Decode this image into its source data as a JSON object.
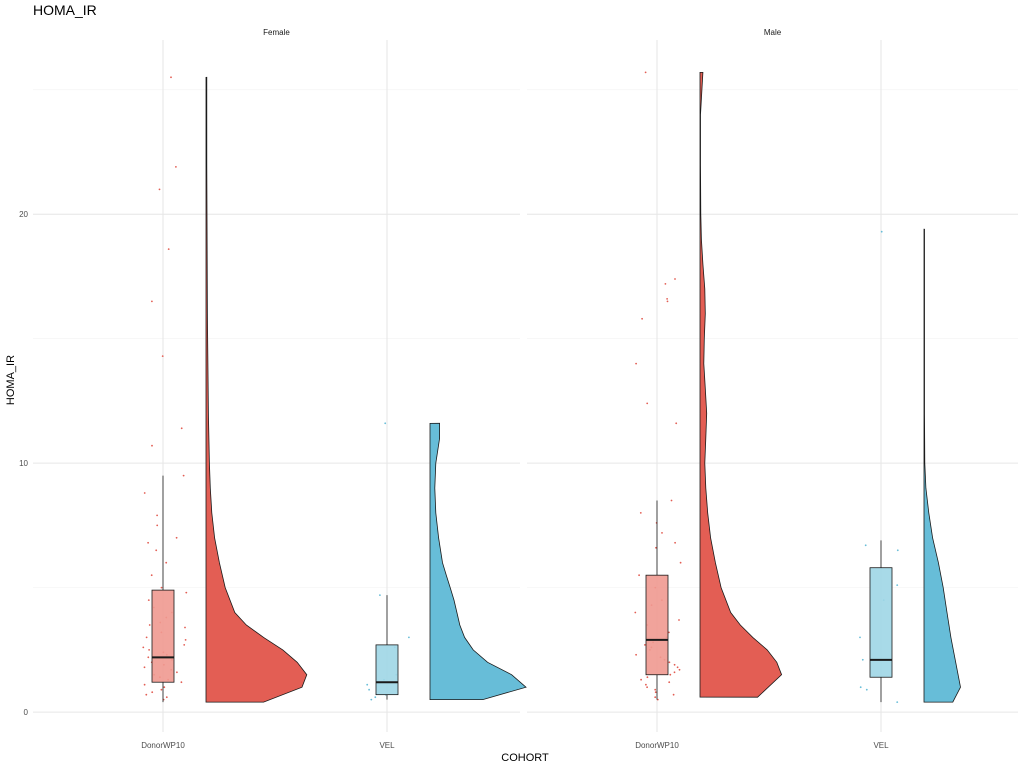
{
  "chart_data": {
    "type": "raincloud",
    "title": "HOMA_IR",
    "xlabel": "COHORT",
    "ylabel": "HOMA_IR",
    "ylim": [
      -0.8,
      27
    ],
    "yticks": [
      0,
      10,
      20
    ],
    "ytick_labels": [
      "0",
      "10",
      "20"
    ],
    "grid": true,
    "categories": [
      "DonorWP10",
      "VEL"
    ],
    "colors": {
      "DonorWP10": "#e35e54",
      "VEL": "#67bdd8"
    },
    "box_colors": {
      "DonorWP10": "#f09990",
      "VEL": "#9fd6e6"
    },
    "panels": [
      {
        "label": "Female",
        "groups": [
          {
            "category": "DonorWP10",
            "box": {
              "min": 0.4,
              "q1": 1.2,
              "median": 2.2,
              "q3": 4.9,
              "max": 9.5
            },
            "violin": [
              [
                0.4,
                0.6
              ],
              [
                1.0,
                1.0
              ],
              [
                1.5,
                1.05
              ],
              [
                2.0,
                0.95
              ],
              [
                2.5,
                0.8
              ],
              [
                3.0,
                0.6
              ],
              [
                3.5,
                0.42
              ],
              [
                4.0,
                0.3
              ],
              [
                5.0,
                0.2
              ],
              [
                6.0,
                0.14
              ],
              [
                7.0,
                0.09
              ],
              [
                8.0,
                0.06
              ],
              [
                9.0,
                0.045
              ],
              [
                10.0,
                0.035
              ],
              [
                12.0,
                0.025
              ],
              [
                14.0,
                0.02
              ],
              [
                16.0,
                0.015
              ],
              [
                18.0,
                0.012
              ],
              [
                20.0,
                0.01
              ],
              [
                22.0,
                0.008
              ],
              [
                24.0,
                0.008
              ],
              [
                25.5,
                0.008
              ]
            ],
            "points": [
              0.5,
              0.6,
              0.7,
              0.8,
              0.9,
              1.0,
              1.1,
              1.2,
              1.3,
              1.4,
              1.5,
              1.6,
              1.7,
              1.8,
              1.9,
              2.0,
              2.1,
              2.2,
              2.3,
              2.4,
              2.5,
              2.6,
              2.7,
              2.9,
              3.0,
              3.2,
              3.4,
              3.5,
              3.6,
              3.8,
              4.0,
              4.2,
              4.5,
              4.8,
              5.0,
              5.5,
              6.0,
              6.5,
              6.8,
              7.0,
              7.5,
              7.9,
              8.8,
              9.5,
              10.7,
              11.4,
              14.3,
              16.5,
              18.6,
              21.0,
              21.9,
              25.5
            ]
          },
          {
            "category": "VEL",
            "box": {
              "min": 0.5,
              "q1": 0.7,
              "median": 1.2,
              "q3": 2.7,
              "max": 4.7
            },
            "violin": [
              [
                0.5,
                0.55
              ],
              [
                1.0,
                1.0
              ],
              [
                1.5,
                0.85
              ],
              [
                2.0,
                0.6
              ],
              [
                2.5,
                0.45
              ],
              [
                3.0,
                0.36
              ],
              [
                3.5,
                0.31
              ],
              [
                4.0,
                0.28
              ],
              [
                4.5,
                0.25
              ],
              [
                5.0,
                0.21
              ],
              [
                5.5,
                0.17
              ],
              [
                6.0,
                0.13
              ],
              [
                7.0,
                0.09
              ],
              [
                8.0,
                0.06
              ],
              [
                9.0,
                0.05
              ],
              [
                10.0,
                0.06
              ],
              [
                11.0,
                0.1
              ],
              [
                11.6,
                0.1
              ]
            ],
            "points": [
              0.5,
              0.6,
              0.7,
              0.9,
              1.1,
              1.3,
              1.5,
              2.6,
              3.0,
              4.7,
              11.6
            ]
          }
        ]
      },
      {
        "label": "Male",
        "groups": [
          {
            "category": "DonorWP10",
            "box": {
              "min": 0.5,
              "q1": 1.5,
              "median": 2.9,
              "q3": 5.5,
              "max": 8.5
            },
            "violin": [
              [
                0.6,
                0.6
              ],
              [
                1.5,
                0.85
              ],
              [
                2.0,
                0.8
              ],
              [
                2.5,
                0.7
              ],
              [
                3.0,
                0.55
              ],
              [
                3.5,
                0.42
              ],
              [
                4.0,
                0.32
              ],
              [
                5.0,
                0.22
              ],
              [
                6.0,
                0.16
              ],
              [
                7.0,
                0.11
              ],
              [
                8.0,
                0.08
              ],
              [
                9.0,
                0.06
              ],
              [
                10.0,
                0.05
              ],
              [
                11.0,
                0.06
              ],
              [
                12.0,
                0.07
              ],
              [
                13.0,
                0.055
              ],
              [
                14.0,
                0.04
              ],
              [
                15.0,
                0.045
              ],
              [
                16.0,
                0.055
              ],
              [
                17.0,
                0.05
              ],
              [
                18.0,
                0.03
              ],
              [
                19.0,
                0.015
              ],
              [
                20.0,
                0.008
              ],
              [
                22.0,
                0.005
              ],
              [
                24.0,
                0.005
              ],
              [
                25.7,
                0.03
              ]
            ],
            "points": [
              0.5,
              0.6,
              0.7,
              0.8,
              0.9,
              1.0,
              1.1,
              1.2,
              1.3,
              1.4,
              1.5,
              1.6,
              1.7,
              1.8,
              1.9,
              2.0,
              2.1,
              2.2,
              2.3,
              2.5,
              2.6,
              2.7,
              2.8,
              3.0,
              3.2,
              3.5,
              3.7,
              4.0,
              4.3,
              4.5,
              5.0,
              5.5,
              6.0,
              6.6,
              6.8,
              7.2,
              7.6,
              8.0,
              8.5,
              11.6,
              12.4,
              14.0,
              15.8,
              16.5,
              16.6,
              17.2,
              17.4,
              25.7
            ]
          },
          {
            "category": "VEL",
            "box": {
              "min": 0.4,
              "q1": 1.4,
              "median": 2.1,
              "q3": 5.8,
              "max": 6.9
            },
            "violin": [
              [
                0.4,
                0.3
              ],
              [
                1.0,
                0.38
              ],
              [
                2.0,
                0.33
              ],
              [
                3.0,
                0.28
              ],
              [
                4.0,
                0.24
              ],
              [
                5.0,
                0.2
              ],
              [
                6.0,
                0.15
              ],
              [
                7.0,
                0.09
              ],
              [
                8.0,
                0.05
              ],
              [
                9.0,
                0.02
              ],
              [
                10.0,
                0.008
              ],
              [
                12.0,
                0.005
              ],
              [
                14.0,
                0.005
              ],
              [
                16.0,
                0.005
              ],
              [
                18.0,
                0.005
              ],
              [
                19.4,
                0.005
              ]
            ],
            "points": [
              0.4,
              0.9,
              1.0,
              2.1,
              3.0,
              4.5,
              5.1,
              6.5,
              6.7,
              19.3
            ]
          }
        ]
      }
    ]
  }
}
